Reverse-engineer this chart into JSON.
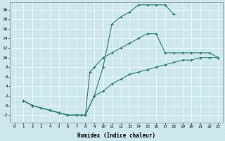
{
  "xlabel": "Humidex (Indice chaleur)",
  "bg_color": "#cce8ee",
  "line_color": "#2e7d6e",
  "xlim": [
    -0.5,
    23.5
  ],
  "ylim": [
    -3.5,
    21.5
  ],
  "xticks": [
    0,
    1,
    2,
    3,
    4,
    5,
    6,
    7,
    8,
    9,
    10,
    11,
    12,
    13,
    14,
    15,
    16,
    17,
    18,
    19,
    20,
    21,
    22,
    23
  ],
  "yticks": [
    -2,
    0,
    2,
    4,
    6,
    8,
    10,
    12,
    14,
    16,
    18,
    20
  ],
  "line1_x": [
    1,
    2,
    3,
    4,
    5,
    6,
    7,
    7.5,
    8,
    9,
    10,
    11,
    12,
    13,
    14,
    15,
    16,
    17,
    18
  ],
  "line1_y": [
    1,
    0,
    -0.5,
    -1,
    -1.5,
    -2,
    -2,
    -2,
    -2,
    2,
    8,
    17,
    18.5,
    19.5,
    21,
    21,
    21,
    21,
    19
  ],
  "line2_x": [
    1,
    2,
    3,
    4,
    5,
    6,
    7,
    8,
    8.5,
    9,
    10,
    11,
    12,
    13,
    14,
    15,
    16,
    17,
    18,
    19,
    20,
    21,
    22,
    23
  ],
  "line2_y": [
    1,
    0,
    -0.5,
    -1,
    -1.5,
    -2,
    -2,
    -2,
    7,
    8,
    10,
    11,
    12,
    13,
    14,
    15,
    15,
    11,
    11,
    11,
    11,
    11,
    11,
    10
  ],
  "line3_x": [
    1,
    2,
    3,
    4,
    5,
    6,
    7,
    8,
    9,
    10,
    11,
    12,
    13,
    14,
    15,
    16,
    17,
    18,
    19,
    20,
    21,
    22,
    23
  ],
  "line3_y": [
    1,
    0,
    -0.5,
    -1,
    -1.5,
    -2,
    -2,
    -2,
    2,
    3,
    4.5,
    5.5,
    6.5,
    7,
    7.5,
    8,
    8.5,
    9,
    9.5,
    9.5,
    10,
    10,
    10
  ]
}
